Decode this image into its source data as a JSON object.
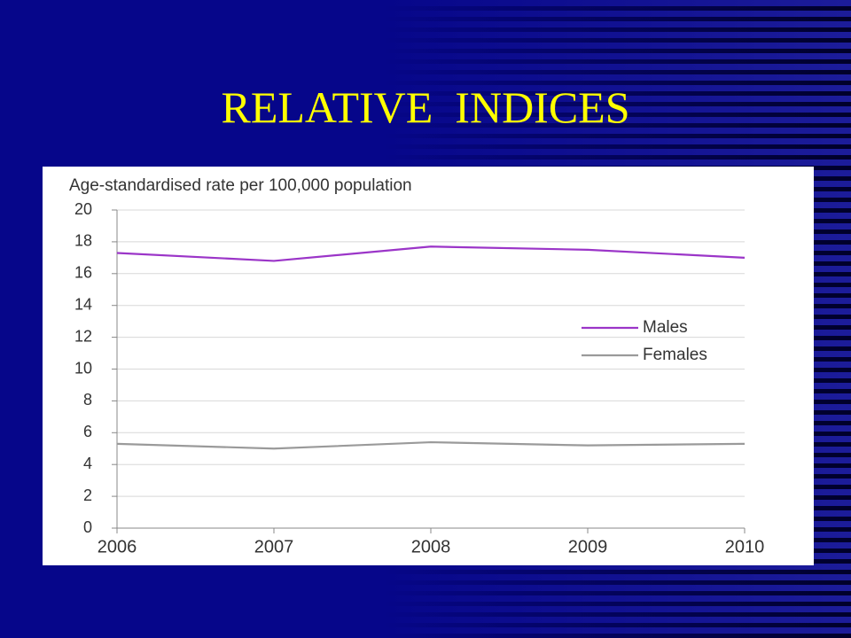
{
  "chart_data": {
    "type": "line",
    "title": "RELATIVE  INDICES",
    "y_label": "Age-standardised rate per 100,000  population",
    "x": [
      2006,
      2007,
      2008,
      2009,
      2010
    ],
    "xlim": [
      2006,
      2010
    ],
    "xticks": [
      2006,
      2007,
      2008,
      2009,
      2010
    ],
    "ylim": [
      0,
      20
    ],
    "yticks": [
      0,
      2,
      4,
      6,
      8,
      10,
      12,
      14,
      16,
      18,
      20
    ],
    "grid": true,
    "legend": "right",
    "series": [
      {
        "name": "Males",
        "color": "#9b35c8",
        "values": [
          17.3,
          16.8,
          17.7,
          17.5,
          17.0
        ]
      },
      {
        "name": "Females",
        "color": "#9a9a9a",
        "values": [
          5.3,
          5.0,
          5.4,
          5.2,
          5.3
        ]
      }
    ]
  }
}
